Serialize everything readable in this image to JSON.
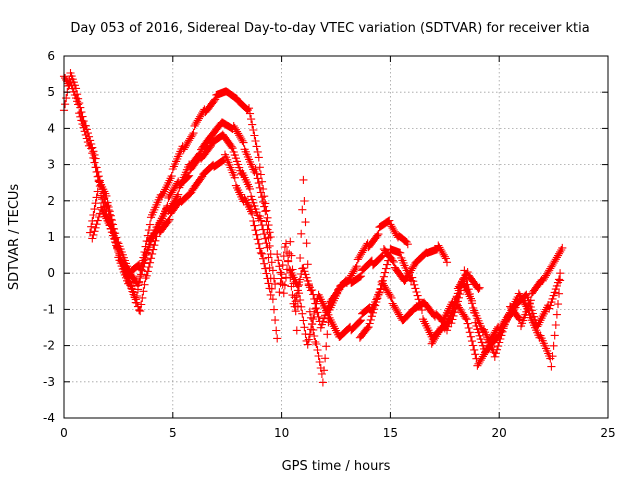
{
  "chart_data": {
    "type": "scatter",
    "title": "Day 053 of 2016, Sidereal Day-to-day VTEC variation (SDTVAR) for receiver ktia",
    "xlabel": "GPS time / hours",
    "ylabel": "SDTVAR / TECUs",
    "xlim": [
      0,
      25
    ],
    "ylim": [
      -4,
      6
    ],
    "xticks": [
      "0",
      "5",
      "10",
      "15",
      "20",
      "25"
    ],
    "yticks": [
      "-4",
      "-3",
      "-2",
      "-1",
      "0",
      "1",
      "2",
      "3",
      "4",
      "5",
      "6"
    ],
    "grid": true,
    "marker": "plus",
    "color": "#ff0000",
    "series": [
      {
        "x": [
          0,
          0.3,
          0.6,
          1.0,
          1.5,
          2.0,
          2.5,
          3.0,
          3.3,
          3.6,
          4.0,
          4.5,
          5.0,
          5.5,
          6.0,
          6.5,
          7.0,
          7.5,
          8.0,
          8.5,
          9.0,
          9.5
        ],
        "y": [
          4.5,
          5.5,
          5.0,
          4.0,
          3.0,
          1.8,
          0.5,
          -0.3,
          -0.8,
          0.3,
          1.5,
          2.2,
          2.8,
          3.5,
          4.0,
          4.5,
          4.9,
          5.0,
          4.8,
          4.5,
          3.0,
          1.0
        ]
      },
      {
        "x": [
          0,
          0.3,
          0.7,
          1.2,
          1.7,
          2.2,
          2.7,
          3.2,
          3.5,
          3.8,
          4.3,
          4.8,
          5.3,
          5.8,
          6.3,
          6.8,
          7.3,
          7.8,
          8.3,
          8.8,
          9.3,
          9.7
        ],
        "y": [
          5.5,
          5.2,
          4.5,
          3.5,
          2.2,
          1.2,
          0.2,
          -0.5,
          -1.1,
          0.0,
          1.2,
          1.8,
          2.3,
          3.0,
          3.4,
          3.8,
          4.2,
          4.0,
          3.5,
          2.8,
          1.5,
          -0.3
        ]
      },
      {
        "x": [
          1.2,
          1.6,
          2.0,
          2.5,
          3.0,
          3.4,
          3.8,
          4.3,
          4.8,
          5.3,
          5.8,
          6.3,
          6.8,
          7.3,
          7.8,
          8.2,
          8.6,
          9.0,
          9.4,
          9.8
        ],
        "y": [
          1.2,
          2.5,
          2.0,
          0.8,
          0.0,
          -0.3,
          0.5,
          1.3,
          2.0,
          2.5,
          2.8,
          3.2,
          3.6,
          3.8,
          3.4,
          2.7,
          2.2,
          1.5,
          0.5,
          -1.8
        ]
      },
      {
        "x": [
          1.3,
          1.7,
          2.1,
          2.6,
          3.1,
          3.5,
          3.9,
          4.4,
          4.9,
          5.4,
          5.9,
          6.4,
          6.9,
          7.4,
          7.9,
          8.3,
          8.7,
          9.1,
          9.5
        ],
        "y": [
          1.0,
          1.8,
          1.3,
          0.4,
          0.0,
          0.2,
          0.8,
          1.2,
          1.6,
          2.0,
          2.3,
          2.7,
          3.0,
          3.2,
          2.5,
          2.0,
          1.5,
          0.5,
          -0.6
        ]
      },
      {
        "x": [
          9.8,
          10.1,
          10.4,
          10.7,
          11.0,
          11.3,
          11.6,
          11.9,
          12.2,
          12.6,
          13.0,
          13.5,
          14.0,
          14.5,
          15.0,
          15.4,
          15.8
        ],
        "y": [
          0.5,
          -0.5,
          0.8,
          -1.5,
          2.5,
          -1.0,
          -2.0,
          -3.0,
          -1.0,
          -0.5,
          -0.2,
          0.3,
          0.8,
          1.2,
          1.4,
          1.0,
          0.8
        ]
      },
      {
        "x": [
          9.9,
          10.2,
          10.6,
          11.0,
          11.4,
          11.8,
          12.2,
          12.7,
          13.2,
          13.7,
          14.2,
          14.7,
          15.2,
          15.7,
          16.2,
          16.7,
          17.2,
          17.6
        ],
        "y": [
          -0.6,
          0.9,
          -1.0,
          0.2,
          -0.5,
          -1.5,
          -0.8,
          -0.4,
          -0.2,
          0.0,
          0.3,
          0.6,
          0.2,
          -0.2,
          0.3,
          0.6,
          0.7,
          0.3
        ]
      },
      {
        "x": [
          10.4,
          10.8,
          11.2,
          11.7,
          12.2,
          12.7,
          13.2,
          13.7,
          14.1,
          14.6,
          15.1,
          15.6,
          16.1,
          16.6,
          17.1,
          17.6,
          18.1,
          18.6,
          19.1
        ],
        "y": [
          0.0,
          -0.5,
          -2.0,
          -0.6,
          -1.2,
          -1.8,
          -1.5,
          -1.2,
          -1.0,
          -0.3,
          -0.8,
          -1.3,
          -1.0,
          -0.8,
          -1.2,
          -1.5,
          -0.5,
          0.0,
          -0.4
        ]
      },
      {
        "x": [
          13.6,
          14.0,
          14.5,
          15.0,
          15.5,
          16.0,
          16.5,
          17.0,
          17.5,
          18.0,
          18.5,
          19.0,
          19.5,
          20.0,
          20.5,
          21.0,
          21.5,
          22.0,
          22.5,
          22.9
        ],
        "y": [
          -1.8,
          -1.5,
          -0.5,
          0.6,
          0.5,
          -0.2,
          -1.2,
          -1.8,
          -1.5,
          -0.8,
          -1.3,
          -2.5,
          -2.0,
          -1.5,
          -1.0,
          -1.4,
          -0.6,
          -0.2,
          0.3,
          0.7
        ]
      },
      {
        "x": [
          16.9,
          17.4,
          17.9,
          18.4,
          18.9,
          19.4,
          19.9,
          20.4,
          20.9,
          21.4,
          21.9,
          22.4,
          22.8
        ],
        "y": [
          -1.9,
          -1.4,
          -0.8,
          0.0,
          -1.3,
          -2.2,
          -1.8,
          -1.2,
          -0.6,
          -1.1,
          -1.8,
          -2.5,
          -0.2
        ]
      },
      {
        "x": [
          17.8,
          18.3,
          18.8,
          19.3,
          19.8,
          20.3,
          20.8,
          21.3,
          21.8,
          22.3,
          22.8
        ],
        "y": [
          -1.3,
          -0.3,
          -0.9,
          -1.6,
          -2.3,
          -1.3,
          -0.9,
          -0.6,
          -1.5,
          -0.9,
          0.0
        ]
      }
    ]
  }
}
